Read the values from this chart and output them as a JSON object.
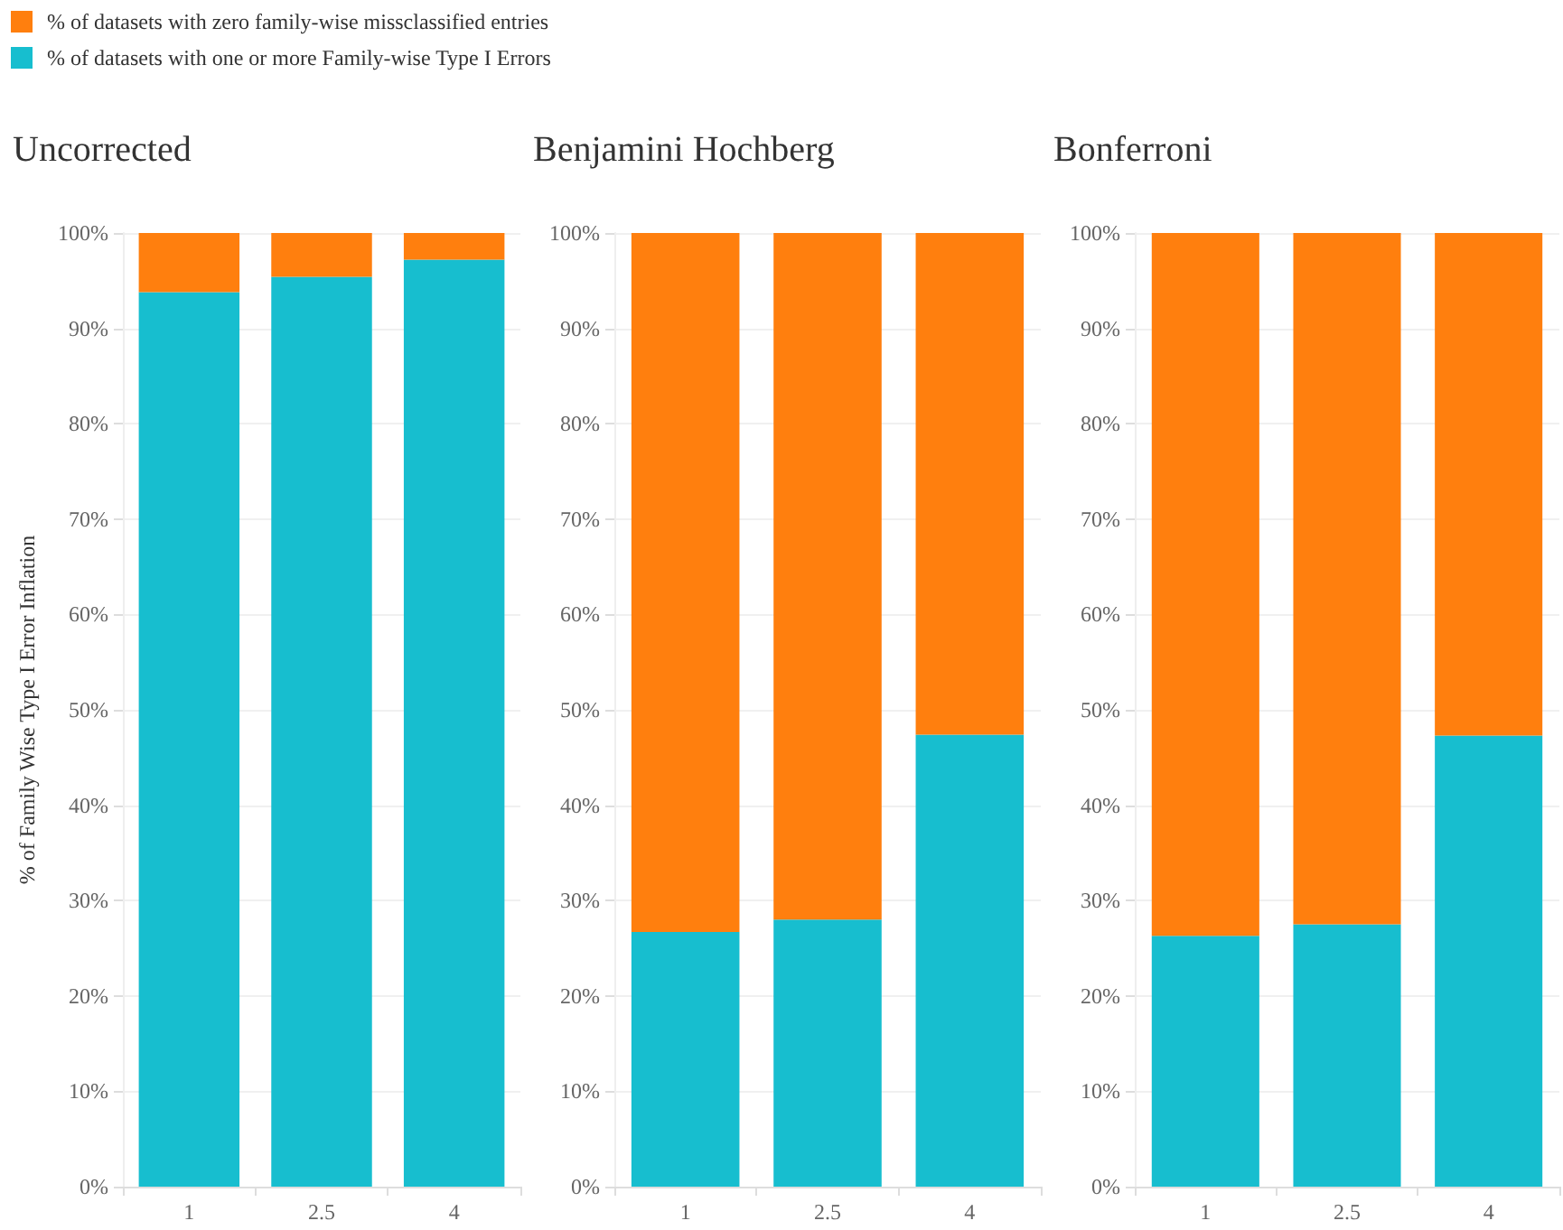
{
  "chart_data": [
    {
      "type": "bar",
      "title": "Uncorrected",
      "ylabel": "% of Family Wise Type I Error Inflation",
      "categories": [
        "1",
        "2.5",
        "4"
      ],
      "stacked": true,
      "legend": "top left",
      "grid": "y",
      "series": [
        {
          "name": "% of datasets with one or more Family-wise Type I Errors",
          "color": "#17becf",
          "values": [
            93.8,
            95.4,
            97.2
          ]
        },
        {
          "name": "% of datasets with zero family-wise missclassified entries",
          "color": "#ff7f0e",
          "values": [
            6.2,
            4.6,
            2.8
          ]
        }
      ],
      "ylim": [
        0,
        100
      ],
      "yticks": [
        {
          "value": 0,
          "label": "0%"
        },
        {
          "value": 10,
          "label": "10%"
        },
        {
          "value": 20,
          "label": "20%"
        },
        {
          "value": 30,
          "label": "30%"
        },
        {
          "value": 40,
          "label": "40%"
        },
        {
          "value": 50,
          "label": "50%"
        },
        {
          "value": 60,
          "label": "60%"
        },
        {
          "value": 70,
          "label": "70%"
        },
        {
          "value": 80,
          "label": "80%"
        },
        {
          "value": 90,
          "label": "90%"
        },
        {
          "value": 100,
          "label": "100%"
        }
      ]
    },
    {
      "type": "bar",
      "title": "Benjamini Hochberg",
      "categories": [
        "1",
        "2.5",
        "4"
      ],
      "stacked": true,
      "grid": "y",
      "series": [
        {
          "color": "#17becf",
          "values": [
            26.7,
            28.0,
            47.4
          ]
        },
        {
          "color": "#ff7f0e",
          "values": [
            73.3,
            72.0,
            52.6
          ]
        }
      ],
      "ylim": [
        0,
        100
      ],
      "yticks": [
        {
          "value": 0,
          "label": "0%"
        },
        {
          "value": 10,
          "label": "10%"
        },
        {
          "value": 20,
          "label": "20%"
        },
        {
          "value": 30,
          "label": "30%"
        },
        {
          "value": 40,
          "label": "40%"
        },
        {
          "value": 50,
          "label": "50%"
        },
        {
          "value": 60,
          "label": "60%"
        },
        {
          "value": 70,
          "label": "70%"
        },
        {
          "value": 80,
          "label": "80%"
        },
        {
          "value": 90,
          "label": "90%"
        },
        {
          "value": 100,
          "label": "100%"
        }
      ]
    },
    {
      "type": "bar",
      "title": "Bonferroni",
      "categories": [
        "1",
        "2.5",
        "4"
      ],
      "stacked": true,
      "grid": "y",
      "series": [
        {
          "color": "#17becf",
          "values": [
            26.3,
            27.5,
            47.3
          ]
        },
        {
          "color": "#ff7f0e",
          "values": [
            73.7,
            72.5,
            52.7
          ]
        }
      ],
      "ylim": [
        0,
        100
      ],
      "yticks": [
        {
          "value": 0,
          "label": "0%"
        },
        {
          "value": 10,
          "label": "10%"
        },
        {
          "value": 20,
          "label": "20%"
        },
        {
          "value": 30,
          "label": "30%"
        },
        {
          "value": 40,
          "label": "40%"
        },
        {
          "value": 50,
          "label": "50%"
        },
        {
          "value": 60,
          "label": "60%"
        },
        {
          "value": 70,
          "label": "70%"
        },
        {
          "value": 80,
          "label": "80%"
        },
        {
          "value": 90,
          "label": "90%"
        },
        {
          "value": 100,
          "label": "100%"
        }
      ]
    }
  ]
}
